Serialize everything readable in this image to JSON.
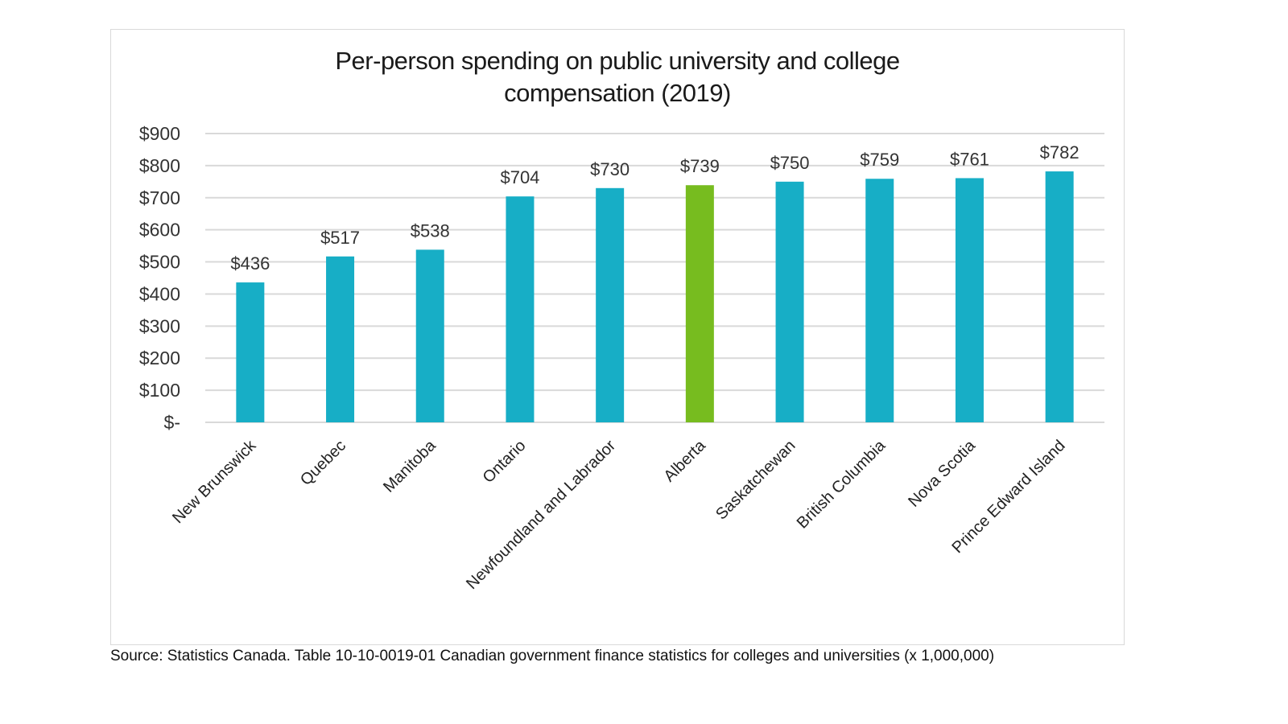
{
  "chart_data": {
    "type": "bar",
    "title_line1": "Per-person spending on public university and college",
    "title_line2": "compensation (2019)",
    "categories": [
      "New Brunswick",
      "Quebec",
      "Manitoba",
      "Ontario",
      "Newfoundland and Labrador",
      "Alberta",
      "Saskatchewan",
      "British Columbia",
      "Nova Scotia",
      "Prince Edward Island"
    ],
    "values": [
      436,
      517,
      538,
      704,
      730,
      739,
      750,
      759,
      761,
      782
    ],
    "data_labels": [
      "$436",
      "$517",
      "$538",
      "$704",
      "$730",
      "$739",
      "$750",
      "$759",
      "$761",
      "$782"
    ],
    "highlight_category": "Alberta",
    "colors": {
      "default": "#17aec6",
      "highlight": "#77bc1f",
      "grid": "#d9d9d9"
    },
    "ylim": [
      0,
      900
    ],
    "yticks": [
      0,
      100,
      200,
      300,
      400,
      500,
      600,
      700,
      800,
      900
    ],
    "ytick_labels": [
      "$-",
      "$100",
      "$200",
      "$300",
      "$400",
      "$500",
      "$600",
      "$700",
      "$800",
      "$900"
    ],
    "xlabel": "",
    "ylabel": "",
    "grid": true,
    "legend": "none"
  },
  "source": "Source: Statistics Canada. Table 10-10-0019-01 Canadian government finance statistics for colleges and universities (x 1,000,000)"
}
